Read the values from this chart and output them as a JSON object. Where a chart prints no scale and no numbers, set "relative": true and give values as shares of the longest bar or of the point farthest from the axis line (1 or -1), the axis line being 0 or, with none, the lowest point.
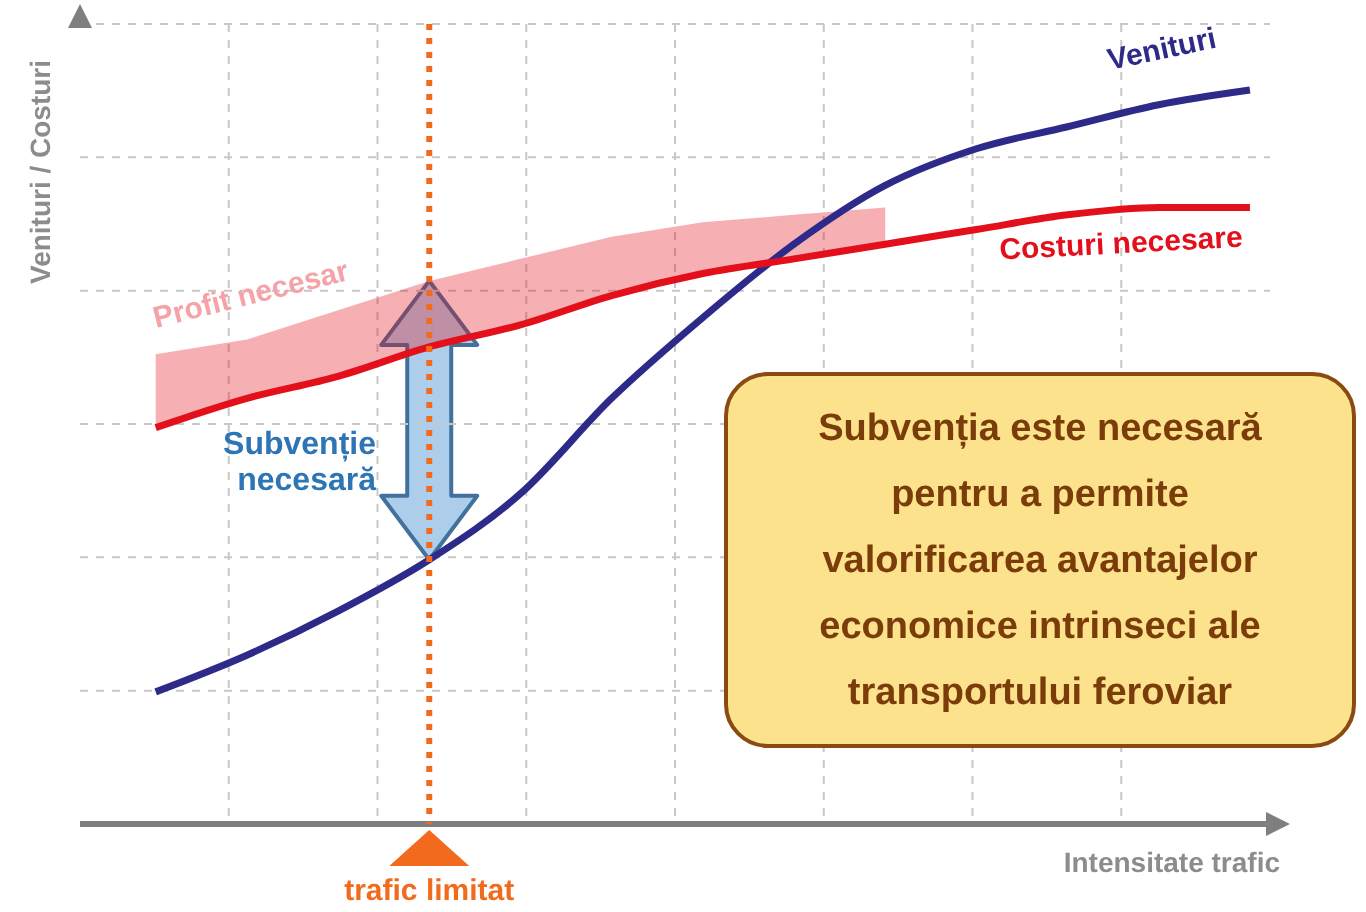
{
  "chart_data": {
    "type": "line",
    "relative": true,
    "xlabel": "Intensitate trafic",
    "ylabel": "Venituri / Costuri",
    "categories": [
      null,
      null,
      null,
      null,
      null,
      null,
      null,
      null,
      null,
      null,
      null,
      null,
      null
    ],
    "series": [
      {
        "name": "Venituri",
        "color": "#2e2a8a",
        "values": [
          0.18,
          0.23,
          0.29,
          0.36,
          0.45,
          0.58,
          0.69,
          0.79,
          0.87,
          0.92,
          0.95,
          0.98,
          1
        ]
      },
      {
        "name": "Costuri necesare",
        "color": "#e3101c",
        "values": [
          0.54,
          0.58,
          0.61,
          0.65,
          0.68,
          0.72,
          0.75,
          0.77,
          0.79,
          0.81,
          0.83,
          0.84,
          0.84
        ],
        "lower": [
          0.54,
          0.58,
          0.61,
          0.65,
          0.68,
          0.72,
          0.75,
          0.77,
          0.79,
          null,
          null,
          null,
          null
        ],
        "upper": [
          0.64,
          0.66,
          0.7,
          0.74,
          0.77,
          0.8,
          0.82,
          0.83,
          0.84,
          null,
          null,
          null,
          null
        ]
      }
    ],
    "annotations": [
      "trafic limitat",
      "Profit necesar",
      "Subvenție necesară",
      "Subvenția este necesară pentru a permite valorificarea avantajelor economice intrinseci ale transportului feroviar"
    ],
    "grid": true,
    "marker": "none",
    "line_style": "solid",
    "legend": false
  }
}
